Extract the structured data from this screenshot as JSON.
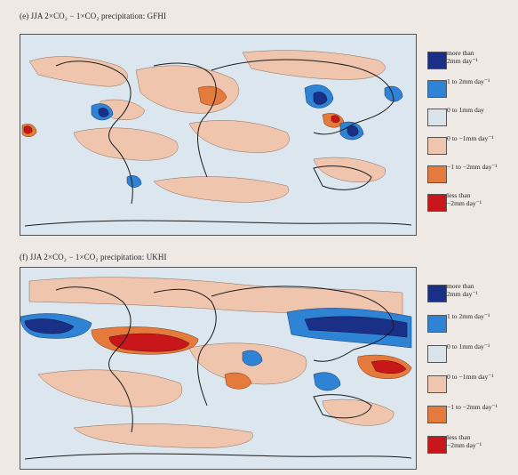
{
  "panels": [
    {
      "id": "e",
      "title": "(e) JJA 2×CO₂ − 1×CO₂ precipitation: GFHI"
    },
    {
      "id": "f",
      "title": "(f) JJA 2×CO₂ − 1×CO₂ precipitation: UKHI"
    }
  ],
  "legend": [
    {
      "label": "more than\n2mm day⁻¹",
      "color": "#1a2f86"
    },
    {
      "label": "1 to 2mm day⁻¹",
      "color": "#2f83d4"
    },
    {
      "label": "0 to 1mm day",
      "color": "#d8e3ea"
    },
    {
      "label": "0 to −1mm day⁻¹",
      "color": "#f0c5ad"
    },
    {
      "label": "−1 to −2mm day⁻¹",
      "color": "#e47a3c"
    },
    {
      "label": "less than\n−2mm day⁻¹",
      "color": "#c8171b"
    }
  ],
  "legend_f": [
    {
      "label": "more than\n2mm day⁻¹"
    },
    {
      "label": "1 to 2mm day⁻¹"
    },
    {
      "label": "0 to 1mm day⁻¹"
    },
    {
      "label": "0 to −1mm day⁻¹"
    },
    {
      "label": "−1 to −2mm day⁻¹"
    },
    {
      "label": "less than\n−2mm day⁻¹"
    }
  ]
}
